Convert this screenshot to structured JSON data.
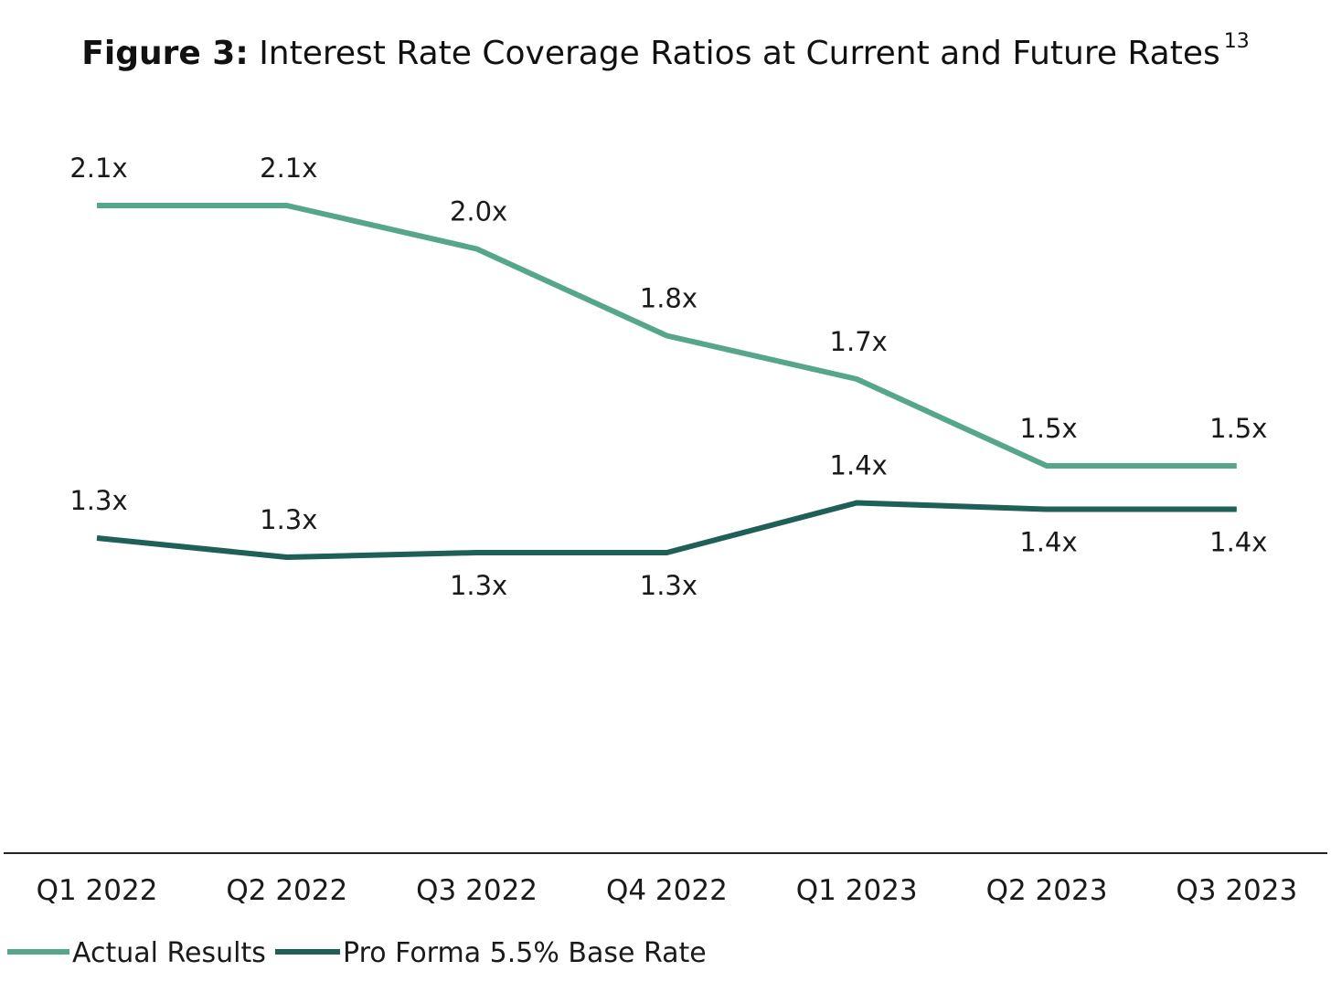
{
  "title": {
    "prefix": "Figure 3:",
    "text": " Interest Rate Coverage Ratios at Current and Future Rates",
    "footnote": "13"
  },
  "chart_data": {
    "type": "line",
    "categories": [
      "Q1 2022",
      "Q2 2022",
      "Q3 2022",
      "Q4 2022",
      "Q1 2023",
      "Q2 2023",
      "Q3 2023"
    ],
    "series": [
      {
        "name": "Actual Results",
        "color": "#56a68b",
        "values": [
          2.1,
          2.1,
          2.0,
          1.8,
          1.7,
          1.5,
          1.5
        ],
        "labels": [
          "2.1x",
          "2.1x",
          "2.0x",
          "1.8x",
          "1.7x",
          "1.5x",
          "1.5x"
        ],
        "label_position": "above"
      },
      {
        "name": "Pro Forma 5.5% Base Rate",
        "color": "#1e5f56",
        "values": [
          1.3,
          1.3,
          1.3,
          1.3,
          1.4,
          1.4,
          1.4
        ],
        "labels": [
          "1.3x",
          "1.3x",
          "1.3x",
          "1.3x",
          "1.4x",
          "1.4x",
          "1.4x"
        ],
        "label_position": "mixed"
      }
    ],
    "grid": false,
    "legend": "bottom-left",
    "xlabel": "",
    "ylabel": ""
  }
}
